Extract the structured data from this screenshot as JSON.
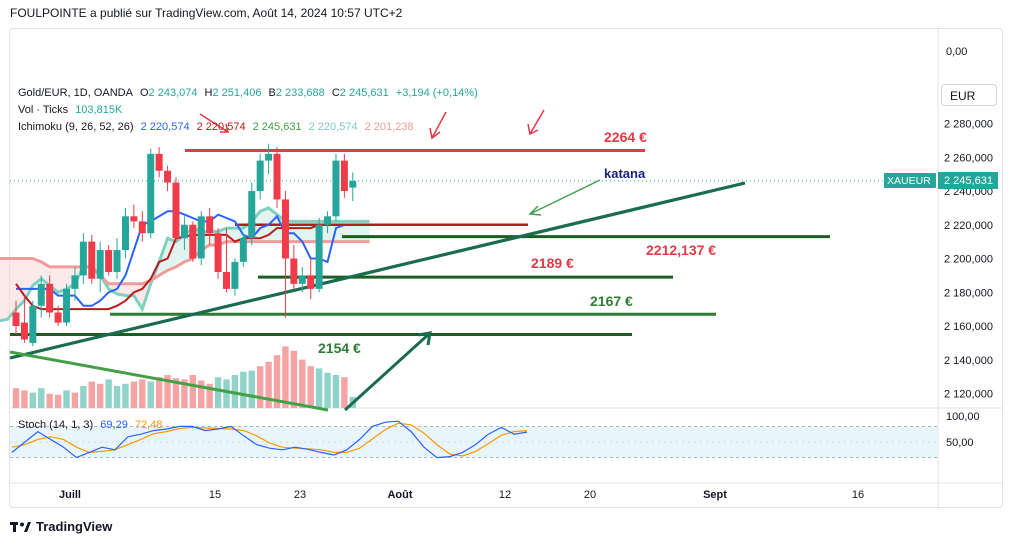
{
  "header": {
    "text": "FOULPOINTE a publié sur TradingView.com, Août 14, 2024 10:57 UTC+2"
  },
  "legend": {
    "symbol": "Gold/EUR, 1D, OANDA",
    "o_label": "O",
    "o_value": "2 243,074",
    "h_label": "H",
    "h_value": "2 251,406",
    "b_label": "B",
    "b_value": "2 233,688",
    "c_label": "C",
    "c_value": "2 245,631",
    "change": "+3,194 (+0,14%)",
    "vol_label": "Vol · Ticks",
    "vol_value": "103,815K",
    "ichimoku_label": "Ichimoku (9, 26, 52, 26)",
    "ich_values": [
      "2 220,574",
      "2 220,574",
      "2 245,631",
      "2 220,574",
      "2 201,238"
    ],
    "ich_colors": [
      "#2962ff",
      "#b71c1c",
      "#43a047",
      "#a5d6a7",
      "#ef9a9a"
    ],
    "stoch_label": "Stoch (14, 1, 3)",
    "stoch_k": "69,29",
    "stoch_d": "72,48"
  },
  "currency": "EUR",
  "price_tag": {
    "symbol": "XAUEUR",
    "value": "2 245,631"
  },
  "colors": {
    "up": "#26a69a",
    "down": "#ef5350",
    "kumo_green": "#81d4c2",
    "kumo_red": "#f3a8a8"
  },
  "annotations": {
    "r2264": "2264 €",
    "katana": "katana",
    "r2212": "2212,137 €",
    "r2189": "2189 €",
    "r2167": "2167 €",
    "r2154": "2154 €"
  },
  "footer": {
    "brand": "TradingView"
  },
  "chart_data": {
    "type": "candlestick",
    "y_ticks": [
      "2 280,000",
      "2 260,000",
      "2 240,000",
      "2 220,000",
      "2 200,000",
      "2 180,000",
      "2 160,000",
      "2 140,000",
      "2 120,000"
    ],
    "upper_tick": "0,00",
    "stoch_ticks": [
      "100,00",
      "50,00"
    ],
    "x_ticks": [
      "Juill",
      "15",
      "23",
      "Août",
      "12",
      "20",
      "Sept",
      "16"
    ],
    "ylim": [
      2110,
      2290
    ],
    "candles": [
      [
        2168,
        2175,
        2155,
        2160
      ],
      [
        2162,
        2178,
        2150,
        2152
      ],
      [
        2150,
        2175,
        2148,
        2172
      ],
      [
        2172,
        2190,
        2165,
        2185
      ],
      [
        2185,
        2190,
        2165,
        2168
      ],
      [
        2168,
        2172,
        2160,
        2162
      ],
      [
        2162,
        2185,
        2160,
        2182
      ],
      [
        2182,
        2195,
        2175,
        2190
      ],
      [
        2190,
        2215,
        2185,
        2210
      ],
      [
        2210,
        2214,
        2185,
        2188
      ],
      [
        2188,
        2210,
        2180,
        2205
      ],
      [
        2205,
        2208,
        2190,
        2192
      ],
      [
        2192,
        2212,
        2188,
        2205
      ],
      [
        2205,
        2230,
        2200,
        2225
      ],
      [
        2225,
        2232,
        2218,
        2222
      ],
      [
        2222,
        2228,
        2210,
        2215
      ],
      [
        2215,
        2265,
        2212,
        2262
      ],
      [
        2262,
        2266,
        2248,
        2252
      ],
      [
        2252,
        2255,
        2240,
        2245
      ],
      [
        2245,
        2248,
        2210,
        2212
      ],
      [
        2212,
        2225,
        2205,
        2220
      ],
      [
        2220,
        2222,
        2198,
        2200
      ],
      [
        2200,
        2228,
        2196,
        2225
      ],
      [
        2225,
        2230,
        2208,
        2215
      ],
      [
        2215,
        2218,
        2188,
        2192
      ],
      [
        2192,
        2218,
        2180,
        2182
      ],
      [
        2182,
        2200,
        2178,
        2198
      ],
      [
        2198,
        2215,
        2195,
        2212
      ],
      [
        2212,
        2245,
        2208,
        2240
      ],
      [
        2240,
        2262,
        2235,
        2258
      ],
      [
        2258,
        2268,
        2250,
        2262
      ],
      [
        2262,
        2266,
        2230,
        2235
      ],
      [
        2235,
        2240,
        2165,
        2200
      ],
      [
        2200,
        2208,
        2182,
        2185
      ],
      [
        2185,
        2195,
        2180,
        2190
      ],
      [
        2190,
        2200,
        2176,
        2182
      ],
      [
        2182,
        2224,
        2180,
        2220
      ],
      [
        2220,
        2228,
        2215,
        2225
      ],
      [
        2225,
        2262,
        2222,
        2258
      ],
      [
        2258,
        2262,
        2236,
        2240
      ],
      [
        2242,
        2251,
        2234,
        2246
      ]
    ],
    "volume": [
      [
        18,
        "down"
      ],
      [
        16,
        "down"
      ],
      [
        14,
        "up"
      ],
      [
        18,
        "up"
      ],
      [
        13,
        "down"
      ],
      [
        12,
        "down"
      ],
      [
        16,
        "up"
      ],
      [
        14,
        "down"
      ],
      [
        20,
        "up"
      ],
      [
        24,
        "down"
      ],
      [
        22,
        "down"
      ],
      [
        26,
        "up"
      ],
      [
        20,
        "up"
      ],
      [
        22,
        "up"
      ],
      [
        24,
        "down"
      ],
      [
        26,
        "down"
      ],
      [
        24,
        "up"
      ],
      [
        28,
        "down"
      ],
      [
        30,
        "down"
      ],
      [
        27,
        "down"
      ],
      [
        26,
        "down"
      ],
      [
        30,
        "down"
      ],
      [
        25,
        "down"
      ],
      [
        22,
        "down"
      ],
      [
        28,
        "up"
      ],
      [
        26,
        "up"
      ],
      [
        30,
        "up"
      ],
      [
        33,
        "up"
      ],
      [
        34,
        "up"
      ],
      [
        38,
        "down"
      ],
      [
        42,
        "down"
      ],
      [
        48,
        "down"
      ],
      [
        56,
        "down"
      ],
      [
        52,
        "down"
      ],
      [
        44,
        "down"
      ],
      [
        38,
        "down"
      ],
      [
        36,
        "up"
      ],
      [
        32,
        "up"
      ],
      [
        30,
        "up"
      ],
      [
        28,
        "down"
      ],
      [
        10,
        "up"
      ]
    ],
    "tenkan": [
      2182,
      2182,
      2182,
      2182,
      2182,
      2178,
      2178,
      2178,
      2172,
      2172,
      2175,
      2180,
      2182,
      2190,
      2205,
      2220,
      2222,
      2225,
      2228,
      2228,
      2226,
      2224,
      2222,
      2222,
      2226,
      2224,
      2222,
      2214,
      2212,
      2218,
      2220,
      2225,
      2215,
      2215,
      2210,
      2200,
      2200,
      2198,
      2218,
      2220,
      2220
    ],
    "kijun": [
      2185,
      2178,
      2172,
      2170,
      2170,
      2170,
      2170,
      2170,
      2170,
      2170,
      2170,
      2170,
      2172,
      2175,
      2180,
      2182,
      2188,
      2198,
      2200,
      2212,
      2213,
      2214,
      2214,
      2214,
      2214,
      2214,
      2210,
      2212,
      2212,
      2212,
      2214,
      2218,
      2218,
      2218,
      2218,
      2218,
      2220,
      2220,
      2220,
      2220,
      2220
    ],
    "chikou": [
      2215,
      2250,
      2265,
      2240,
      2212,
      2195,
      2205,
      2235,
      2240,
      2226,
      2235,
      2238
    ],
    "spanA": [
      2203,
      2203,
      2200,
      2198,
      2197,
      2195,
      2193,
      2190,
      2180,
      2175,
      2168,
      2165,
      2163,
      2163,
      2164,
      2170,
      2175,
      2184,
      2188,
      2184,
      2180,
      2182,
      2185,
      2195,
      2195,
      2190,
      2182,
      2179,
      2178,
      2178,
      2170,
      2185,
      2198,
      2212,
      2210,
      2214,
      2218,
      2216,
      2216,
      2216,
      2218,
      2218,
      2218,
      2222,
      2228,
      2230,
      2226,
      2222,
      2222,
      2222,
      2222,
      2222,
      2222,
      2222,
      2222,
      2222,
      2222,
      2222
    ],
    "spanB": [
      2115,
      2120,
      2125,
      2125,
      2130,
      2135,
      2140,
      2145,
      2150,
      2160,
      2170,
      2185,
      2195,
      2200,
      2200,
      2200,
      2200,
      2200,
      2198,
      2195,
      2195,
      2195,
      2195,
      2195,
      2195,
      2190,
      2185,
      2185,
      2185,
      2185,
      2185,
      2187,
      2190,
      2193,
      2195,
      2198,
      2200,
      2205,
      2208,
      2208,
      2210,
      2210,
      2210,
      2210,
      2210,
      2210,
      2210,
      2210,
      2210,
      2210,
      2210,
      2210,
      2210,
      2210,
      2210,
      2210,
      2210,
      2210
    ],
    "stoch_k": [
      30,
      50,
      70,
      55,
      40,
      20,
      30,
      40,
      35,
      60,
      65,
      72,
      75,
      80,
      80,
      72,
      75,
      80,
      62,
      45,
      38,
      35,
      40,
      36,
      30,
      25,
      35,
      55,
      80,
      88,
      90,
      70,
      40,
      20,
      22,
      30,
      45,
      65,
      78,
      65,
      69
    ],
    "stoch_d": [
      40,
      45,
      55,
      60,
      55,
      40,
      30,
      32,
      35,
      45,
      55,
      66,
      70,
      76,
      78,
      77,
      76,
      75,
      72,
      62,
      48,
      40,
      38,
      37,
      35,
      30,
      30,
      38,
      56,
      74,
      86,
      83,
      67,
      45,
      27,
      23,
      32,
      47,
      63,
      70,
      72
    ]
  }
}
